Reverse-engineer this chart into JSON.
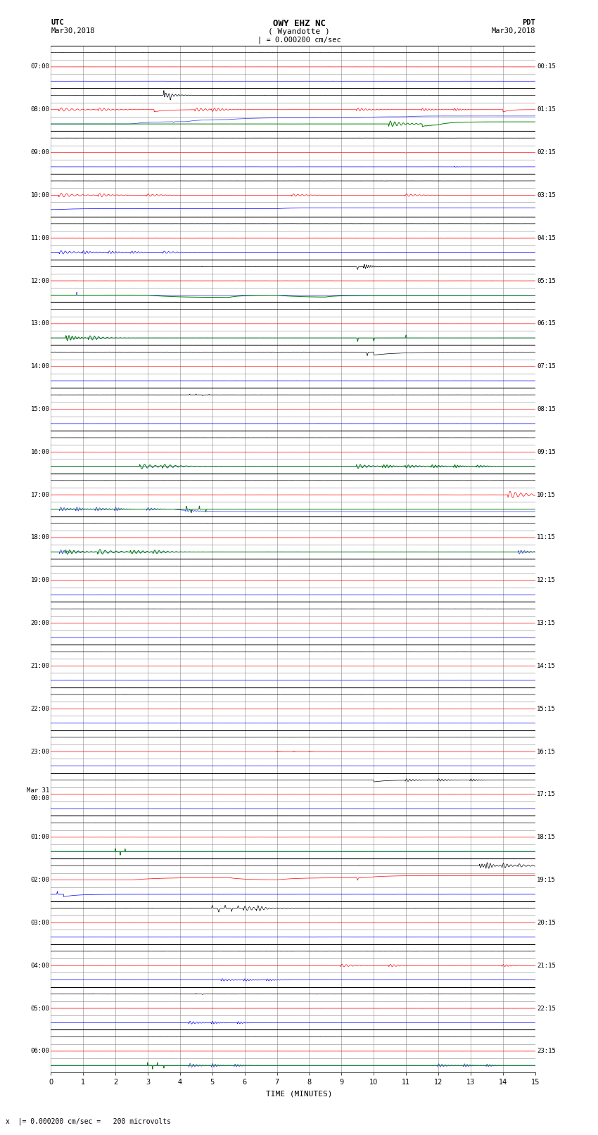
{
  "title_line1": "OWY EHZ NC",
  "title_line2": "( Wyandotte )",
  "scale_label": "| = 0.000200 cm/sec",
  "left_timezone": "UTC",
  "left_date": "Mar30,2018",
  "right_timezone": "PDT",
  "right_date": "Mar30,2018",
  "xlabel": "TIME (MINUTES)",
  "bottom_note": "x  |= 0.000200 cm/sec =   200 microvolts",
  "figsize": [
    8.5,
    16.13
  ],
  "dpi": 100,
  "n_rows": 24,
  "x_ticks": [
    0,
    1,
    2,
    3,
    4,
    5,
    6,
    7,
    8,
    9,
    10,
    11,
    12,
    13,
    14,
    15
  ],
  "utc_labels": [
    "07:00",
    "08:00",
    "09:00",
    "10:00",
    "11:00",
    "12:00",
    "13:00",
    "14:00",
    "15:00",
    "16:00",
    "17:00",
    "18:00",
    "19:00",
    "20:00",
    "21:00",
    "22:00",
    "23:00",
    "Mar 31\n00:00",
    "01:00",
    "02:00",
    "03:00",
    "04:00",
    "05:00",
    "06:00"
  ],
  "pdt_labels": [
    "00:15",
    "01:15",
    "02:15",
    "03:15",
    "04:15",
    "05:15",
    "06:15",
    "07:15",
    "08:15",
    "09:15",
    "10:15",
    "11:15",
    "12:15",
    "13:15",
    "14:15",
    "15:15",
    "16:15",
    "17:15",
    "18:15",
    "19:15",
    "20:15",
    "21:15",
    "22:15",
    "23:15"
  ],
  "bg_color": "#ffffff",
  "grid_color": "#888888"
}
